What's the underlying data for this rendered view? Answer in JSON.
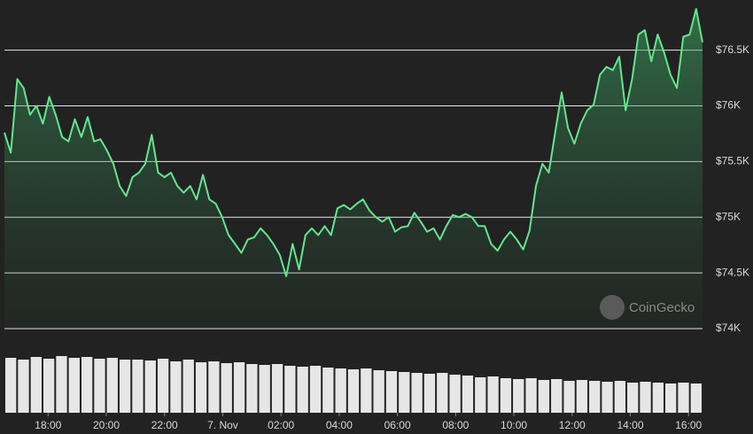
{
  "chart_data": [
    {
      "type": "line",
      "color": "#63e68f",
      "watermark": "CoinGecko",
      "x": [
        16.5,
        16.72,
        16.94,
        17.16,
        17.38,
        17.6,
        17.82,
        18.04,
        18.26,
        18.48,
        18.7,
        18.92,
        19.14,
        19.36,
        19.58,
        19.8,
        20.02,
        20.24,
        20.46,
        20.68,
        20.9,
        21.12,
        21.34,
        21.56,
        21.78,
        22,
        22.22,
        22.44,
        22.66,
        22.88,
        23.1,
        23.32,
        23.54,
        23.76,
        23.98,
        24.2,
        24.42,
        24.64,
        24.86,
        25.08,
        25.3,
        25.52,
        25.74,
        25.96,
        26.18,
        26.4,
        26.62,
        26.84,
        27.06,
        27.28,
        27.5,
        27.72,
        27.94,
        28.16,
        28.38,
        28.6,
        28.82,
        29.04,
        29.26,
        29.48,
        29.7,
        29.92,
        30.14,
        30.36,
        30.58,
        30.8,
        31.02,
        31.24,
        31.46,
        31.68,
        31.9,
        32.12,
        32.34,
        32.56,
        32.78,
        33,
        33.22,
        33.44,
        33.66,
        33.88,
        34.1,
        34.32,
        34.54,
        34.76,
        34.98,
        35.2,
        35.42,
        35.64,
        35.86,
        36.08,
        36.3,
        36.52,
        36.74,
        36.96,
        37.18,
        37.4,
        37.62,
        37.84,
        38.06,
        38.28,
        38.5,
        38.72,
        38.94,
        39.16,
        39.38,
        39.6,
        39.82,
        40.04,
        40.26,
        40.48
      ],
      "values": [
        75760,
        75580,
        76240,
        76160,
        75920,
        76000,
        75840,
        76080,
        75920,
        75720,
        75680,
        75880,
        75720,
        75900,
        75680,
        75700,
        75600,
        75480,
        75280,
        75190,
        75360,
        75400,
        75480,
        75740,
        75400,
        75360,
        75400,
        75280,
        75220,
        75280,
        75160,
        75380,
        75160,
        75120,
        75000,
        74840,
        74760,
        74680,
        74800,
        74820,
        74900,
        74840,
        74760,
        74660,
        74470,
        74760,
        74530,
        74840,
        74900,
        74840,
        74920,
        74840,
        75080,
        75110,
        75070,
        75120,
        75160,
        75060,
        75000,
        74960,
        75000,
        74870,
        74910,
        74920,
        75040,
        74960,
        74870,
        74900,
        74800,
        74920,
        75020,
        75000,
        75030,
        75000,
        74920,
        74920,
        74760,
        74700,
        74800,
        74870,
        74800,
        74710,
        74880,
        75280,
        75480,
        75400,
        75760,
        76120,
        75800,
        75660,
        75840,
        75960,
        76010,
        76280,
        76350,
        76320,
        76440,
        75960,
        76240,
        76640,
        76680,
        76400,
        76640,
        76480,
        76280,
        76160,
        76620,
        76640,
        76870,
        76570
      ],
      "xlim": [
        16.5,
        40.48
      ],
      "xticks": [
        {
          "value": 18,
          "label": "18:00"
        },
        {
          "value": 20,
          "label": "20:00"
        },
        {
          "value": 22,
          "label": "22:00"
        },
        {
          "value": 24,
          "label": "7. Nov"
        },
        {
          "value": 26,
          "label": "02:00"
        },
        {
          "value": 28,
          "label": "04:00"
        },
        {
          "value": 30,
          "label": "06:00"
        },
        {
          "value": 32,
          "label": "08:00"
        },
        {
          "value": 34,
          "label": "10:00"
        },
        {
          "value": 36,
          "label": "12:00"
        },
        {
          "value": 38,
          "label": "14:00"
        },
        {
          "value": 40,
          "label": "16:00"
        }
      ],
      "ylim": [
        74000,
        76950
      ],
      "yticks": [
        {
          "value": 74000,
          "label": "$74K"
        },
        {
          "value": 74500,
          "label": "$74.5K"
        },
        {
          "value": 75000,
          "label": "$75K"
        },
        {
          "value": 75500,
          "label": "$75.5K"
        },
        {
          "value": 76000,
          "label": "$76K"
        },
        {
          "value": 76500,
          "label": "$76.5K"
        }
      ],
      "grid": true
    },
    {
      "type": "bar",
      "color": "#e6e6e6",
      "values": [
        62,
        60,
        63,
        61,
        64,
        62,
        63,
        61,
        62,
        60,
        60,
        59,
        61,
        58,
        60,
        57,
        58,
        56,
        57,
        55,
        54,
        55,
        53,
        52,
        53,
        51,
        50,
        49,
        50,
        48,
        47,
        46,
        45,
        44,
        45,
        43,
        42,
        40,
        41,
        39,
        38,
        39,
        37,
        38,
        36,
        37,
        36,
        35,
        36,
        34,
        35,
        34,
        33,
        34,
        33
      ],
      "ylim": [
        0,
        70
      ]
    }
  ]
}
